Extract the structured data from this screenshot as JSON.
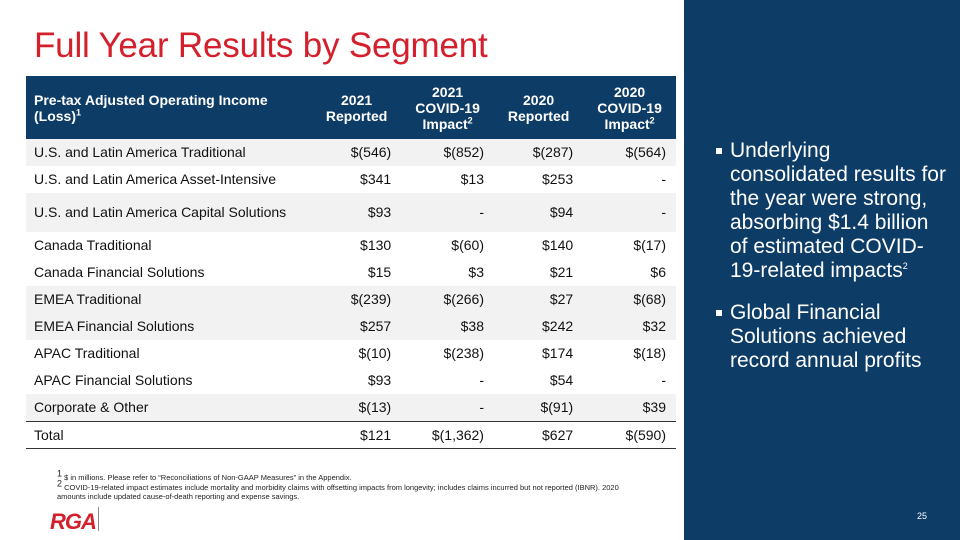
{
  "title": "Full Year Results by Segment",
  "table": {
    "headers": {
      "label": "Pre-tax Adjusted Operating Income (Loss)",
      "label_sup": "1",
      "col1": [
        "2021",
        "Reported"
      ],
      "col2": [
        "2021",
        "COVID-19",
        "Impact"
      ],
      "col2_sup": "2",
      "col3": [
        "2020",
        "Reported"
      ],
      "col4": [
        "2020",
        "COVID-19",
        "Impact"
      ],
      "col4_sup": "2"
    },
    "rows": [
      {
        "label": "U.S. and Latin America Traditional",
        "r2021": "$(546)",
        "c2021": "$(852)",
        "r2020": "$(287)",
        "c2020": "$(564)"
      },
      {
        "label": "U.S. and Latin America Asset-Intensive",
        "r2021": "$341",
        "c2021": "$13",
        "r2020": "$253",
        "c2020": "-"
      },
      {
        "label": "U.S. and Latin America Capital Solutions",
        "r2021": "$93",
        "c2021": "-",
        "r2020": "$94",
        "c2020": "-"
      },
      {
        "label": "Canada Traditional",
        "r2021": "$130",
        "c2021": "$(60)",
        "r2020": "$140",
        "c2020": "$(17)"
      },
      {
        "label": "Canada Financial Solutions",
        "r2021": "$15",
        "c2021": "$3",
        "r2020": "$21",
        "c2020": "$6"
      },
      {
        "label": "EMEA Traditional",
        "r2021": "$(239)",
        "c2021": "$(266)",
        "r2020": "$27",
        "c2020": "$(68)"
      },
      {
        "label": "EMEA Financial Solutions",
        "r2021": "$257",
        "c2021": "$38",
        "r2020": "$242",
        "c2020": "$32"
      },
      {
        "label": "APAC Traditional",
        "r2021": "$(10)",
        "c2021": "$(238)",
        "r2020": "$174",
        "c2020": "$(18)"
      },
      {
        "label": "APAC Financial Solutions",
        "r2021": "$93",
        "c2021": "-",
        "r2020": "$54",
        "c2020": "-"
      },
      {
        "label": "Corporate & Other",
        "r2021": "$(13)",
        "c2021": "-",
        "r2020": "$(91)",
        "c2020": "$39"
      },
      {
        "label": "Total",
        "r2021": "$121",
        "c2021": "$(1,362)",
        "r2020": "$627",
        "c2020": "$(590)"
      }
    ]
  },
  "footnotes": [
    {
      "sup": "1",
      "text": " $ in millions. Please refer to “Reconciliations of Non-GAAP Measures” in the Appendix."
    },
    {
      "sup": "2",
      "text": " COVID-19-related impact estimates include mortality and morbidity claims with offsetting impacts from longevity; includes claims incurred but not reported (IBNR). 2020 amounts include updated cause-of-death reporting and expense savings."
    }
  ],
  "logo": "RGA",
  "bullets": [
    {
      "text": "Underlying consolidated results for the year were strong, absorbing $1.4 billion of estimated COVID-19-related impacts",
      "sup": "2"
    },
    {
      "text": "Global Financial Solutions achieved record annual profits",
      "sup": ""
    }
  ],
  "page_number": "25",
  "colors": {
    "brand_red": "#d3202c",
    "brand_navy": "#0d3c66",
    "row_shade": "#f2f2f2"
  }
}
